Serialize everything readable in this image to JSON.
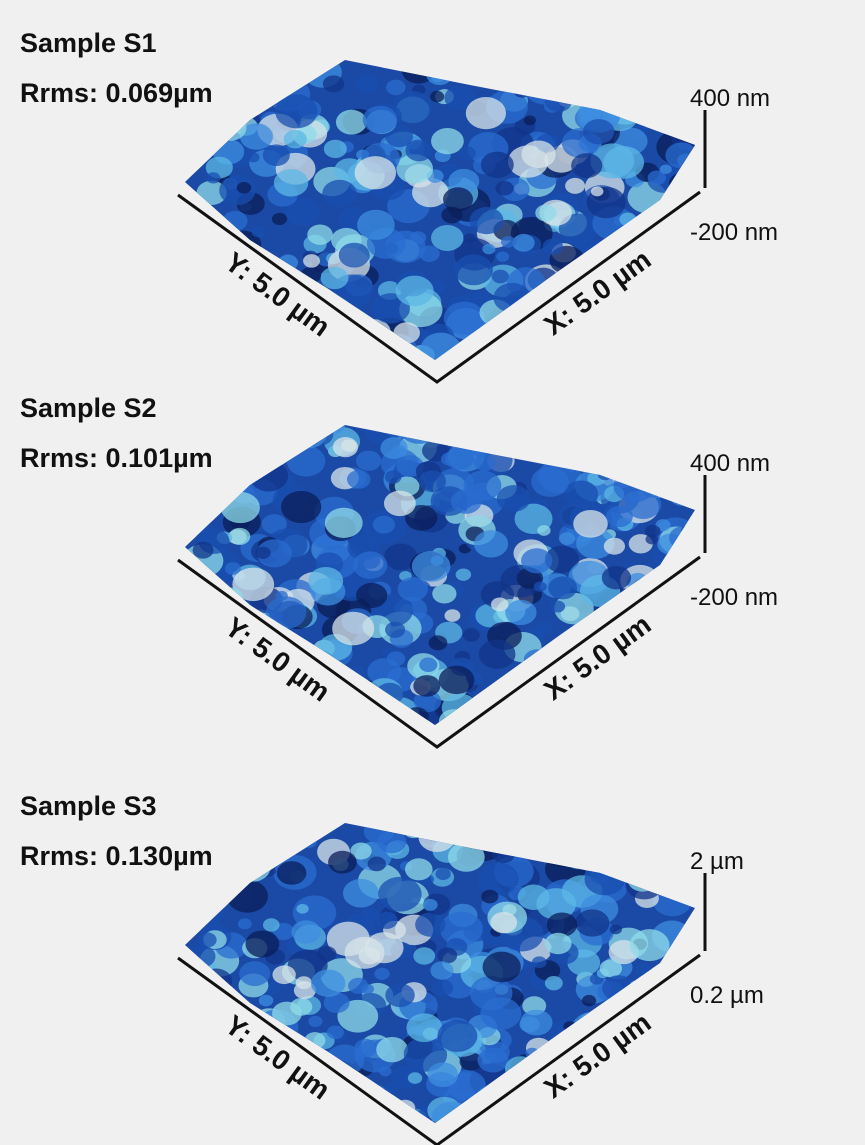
{
  "panels": [
    {
      "title": "Sample S1",
      "rrms": "Rrms: 0.069µm",
      "z_max": "400 nm",
      "z_min": "-200 nm",
      "y_axis": "Y: 5.0 µm",
      "x_axis": "X: 5.0 µm"
    },
    {
      "title": "Sample S2",
      "rrms": "Rrms: 0.101µm",
      "z_max": "400 nm",
      "z_min": "-200 nm",
      "y_axis": "Y: 5.0 µm",
      "x_axis": "X: 5.0 µm"
    },
    {
      "title": "Sample S3",
      "rrms": "Rrms: 0.130µm",
      "z_max": "2 µm",
      "z_min": "0.2 µm",
      "y_axis": "Y: 5.0 µm",
      "x_axis": "X: 5.0 µm"
    }
  ]
}
